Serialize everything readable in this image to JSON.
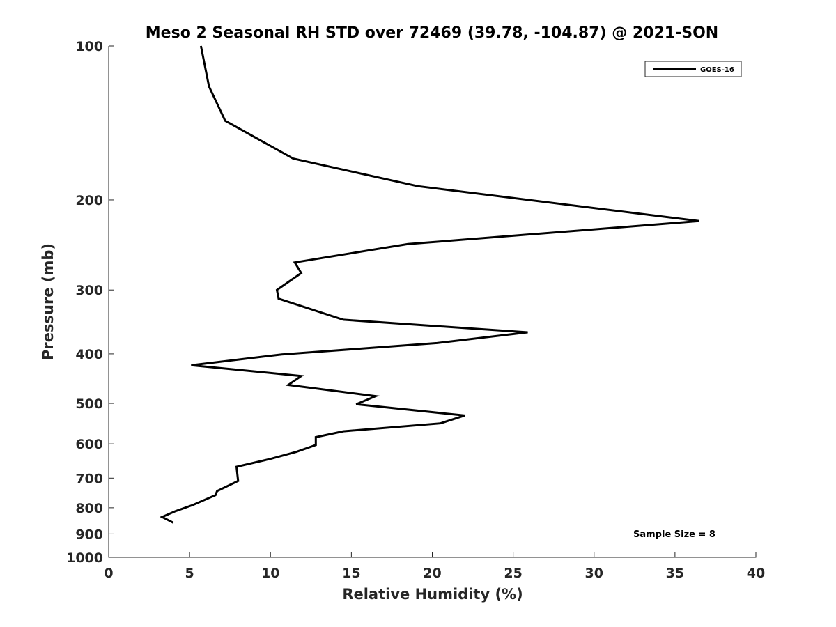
{
  "chart_data": {
    "type": "line",
    "title": "Meso 2 Seasonal RH STD over 72469 (39.78, -104.87) @ 2021-SON",
    "xlabel": "Relative Humidity (%)",
    "ylabel": "Pressure (mb)",
    "xlim": [
      0,
      40
    ],
    "ylim": [
      100,
      1000
    ],
    "y_scale": "log",
    "y_reversed": true,
    "x_ticks": [
      "0",
      "5",
      "10",
      "15",
      "20",
      "25",
      "30",
      "35",
      "40"
    ],
    "y_ticks": [
      "100",
      "200",
      "300",
      "400",
      "500",
      "600",
      "700",
      "800",
      "900",
      "1000"
    ],
    "grid": false,
    "legend_position": "top-right",
    "series": [
      {
        "name": "GOES-16",
        "color": "#000000",
        "points": [
          [
            5.7,
            100
          ],
          [
            6.2,
            120
          ],
          [
            7.2,
            140
          ],
          [
            11.4,
            166
          ],
          [
            19.1,
            188
          ],
          [
            36.5,
            220
          ],
          [
            18.5,
            244
          ],
          [
            11.5,
            265
          ],
          [
            11.9,
            278
          ],
          [
            10.4,
            300
          ],
          [
            10.5,
            312
          ],
          [
            14.5,
            343
          ],
          [
            25.9,
            363
          ],
          [
            20.3,
            381
          ],
          [
            10.7,
            401
          ],
          [
            5.1,
            421
          ],
          [
            11.9,
            442
          ],
          [
            11.1,
            460
          ],
          [
            16.5,
            484
          ],
          [
            15.3,
            502
          ],
          [
            22.0,
            528
          ],
          [
            20.5,
            547
          ],
          [
            14.5,
            567
          ],
          [
            12.8,
            582
          ],
          [
            12.8,
            603
          ],
          [
            11.6,
            622
          ],
          [
            10.0,
            642
          ],
          [
            7.9,
            665
          ],
          [
            8.0,
            709
          ],
          [
            6.7,
            742
          ],
          [
            6.6,
            756
          ],
          [
            5.2,
            790
          ],
          [
            4.1,
            813
          ],
          [
            3.3,
            834
          ],
          [
            4.0,
            856
          ]
        ]
      }
    ],
    "annotation": "Sample Size = 8"
  }
}
